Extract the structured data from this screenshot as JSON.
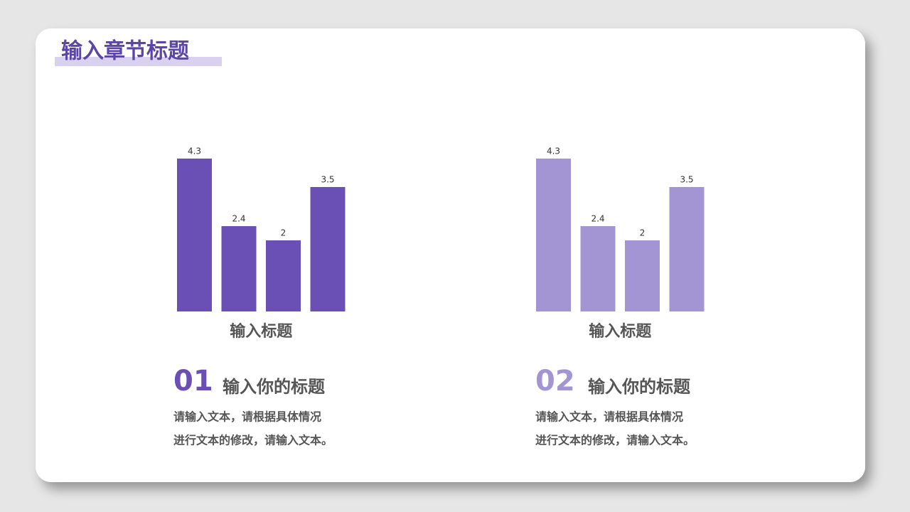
{
  "header": {
    "title": "输入章节标题"
  },
  "chart_data": [
    {
      "type": "bar",
      "title": "输入标题",
      "categories": [
        null,
        null,
        null,
        null
      ],
      "values": [
        4.3,
        2.4,
        2,
        3.5
      ],
      "color": "#6a4fb5"
    },
    {
      "type": "bar",
      "title": "输入标题",
      "categories": [
        null,
        null,
        null,
        null
      ],
      "values": [
        4.3,
        2.4,
        2,
        3.5
      ],
      "color": "#a395d3"
    }
  ],
  "sections": [
    {
      "number": "01",
      "color": "#6a4fb5",
      "title": "输入你的标题",
      "lines": [
        "请输入文本，请根据具体情况",
        "进行文本的修改，请输入文本。"
      ]
    },
    {
      "number": "02",
      "color": "#a395d3",
      "title": "输入你的标题",
      "lines": [
        "请输入文本，请根据具体情况",
        "进行文本的修改，请输入文本。"
      ]
    }
  ]
}
